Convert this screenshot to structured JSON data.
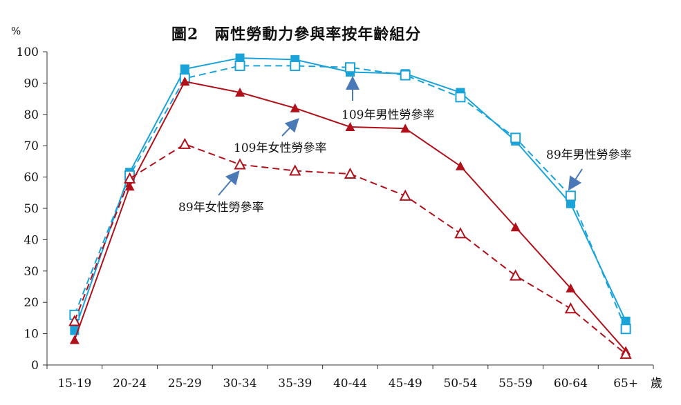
{
  "chart_data": {
    "type": "line",
    "title": "圖2　兩性勞動力參與率按年齡組分",
    "y_unit": "%",
    "x_unit": "歲",
    "categories": [
      "15-19",
      "20-24",
      "25-29",
      "30-34",
      "35-39",
      "40-44",
      "45-49",
      "50-54",
      "55-59",
      "60-64",
      "65+"
    ],
    "ylim": [
      0,
      100
    ],
    "yticks": [
      0,
      10,
      20,
      30,
      40,
      50,
      60,
      70,
      80,
      90,
      100
    ],
    "grid": false,
    "series": [
      {
        "name": "109年男性勞參率",
        "color": "#1aa3d9",
        "style": "solid",
        "marker": "filled-square",
        "values": [
          11,
          61.5,
          94.5,
          98,
          97.5,
          93.5,
          93,
          87,
          71.5,
          51.5,
          14
        ]
      },
      {
        "name": "89年男性勞參率",
        "color": "#1aa3d9",
        "style": "dashed",
        "marker": "open-square",
        "values": [
          16,
          60.5,
          91.5,
          95.5,
          95.5,
          95,
          92.5,
          85.5,
          72.5,
          54,
          11.5
        ]
      },
      {
        "name": "109年女性勞參率",
        "color": "#b0101a",
        "style": "solid",
        "marker": "filled-triangle",
        "values": [
          8,
          57,
          90.5,
          87,
          82,
          76,
          75.5,
          63.5,
          44,
          24.5,
          4.5
        ]
      },
      {
        "name": "89年女性勞參率",
        "color": "#b0101a",
        "style": "dashed",
        "marker": "open-triangle",
        "values": [
          14,
          59.5,
          70.5,
          64,
          62,
          61,
          54,
          42,
          28.5,
          18,
          3.5
        ]
      }
    ],
    "annotations": [
      {
        "text": "109年男性勞參率",
        "series": 0
      },
      {
        "text": "89年男性勞參率",
        "series": 1
      },
      {
        "text": "109年女性勞參率",
        "series": 2
      },
      {
        "text": "89年女性勞參率",
        "series": 3
      }
    ],
    "colors": {
      "arrow": "#4a79b8",
      "axis": "#333333"
    }
  }
}
